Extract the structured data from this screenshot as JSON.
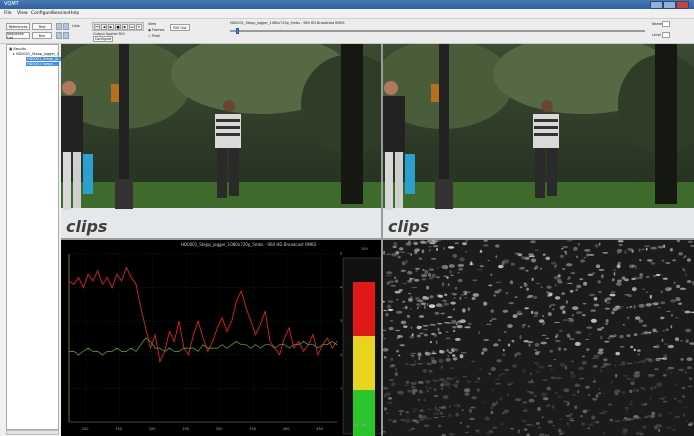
{
  "window": {
    "title": "VQMT"
  },
  "menu": [
    "File",
    "View",
    "Configure",
    "Session",
    "Help"
  ],
  "toolbar": {
    "btn_references": "References",
    "btn_sequence_list": "Sequence List",
    "btn_test": "Test",
    "btn_run": "Run",
    "btn_configure": "Configure",
    "label_output_spatial_roi": "Output Spatial ROI",
    "label_lists": "Lists",
    "label_frames": "Frames",
    "label_pixel": "Pixel",
    "label_view": "View",
    "btn_roi_out": "ROI Out",
    "filename": "HD0001_Stepp_jogger_1080x720p_5mbs - 960 HD Broadcast 0MKS",
    "label_name": "Name",
    "label_level": "Level"
  },
  "tree": {
    "items": [
      {
        "label": "Results"
      },
      {
        "label": "HD0001_Stepp_jogger_1"
      },
      {
        "label": "HD0001_Stepp_jo..."
      },
      {
        "label": "HD0001 Stepp_..."
      }
    ]
  },
  "video": {
    "watermark": "clips"
  },
  "chart_data": {
    "type": "line",
    "title": "HD0001_Stepp_jogger_1080x720p_5mbs - 960 HD Broadcast 0MKS",
    "x_ticks": [
      "100",
      "150",
      "200",
      "250",
      "300",
      "350",
      "400",
      "450"
    ],
    "y_ticks": [
      "1",
      "2",
      "3",
      "4",
      "5"
    ],
    "legend_scale_top": "100",
    "legend_scale_bottom": "0.5 - 80",
    "series": [
      {
        "color": "#e02020",
        "values": [
          4.2,
          4.1,
          4.3,
          4.0,
          4.4,
          4.2,
          4.5,
          4.1,
          4.3,
          4.0,
          4.4,
          4.2,
          4.6,
          4.3,
          4.1,
          3.4,
          2.8,
          2.2,
          2.6,
          1.8,
          2.1,
          2.7,
          2.4,
          3.0,
          2.2,
          2.0,
          2.6,
          3.0,
          2.5,
          2.1,
          2.4,
          2.8,
          3.1,
          2.7,
          3.0,
          3.6,
          3.9,
          3.4,
          3.0,
          2.6,
          2.9,
          3.3,
          2.4,
          2.2,
          2.0,
          2.5,
          2.8,
          2.2,
          2.4,
          2.1,
          2.3,
          2.6,
          2.0,
          2.3,
          2.5,
          2.2,
          2.4
        ]
      },
      {
        "color": "#5ab22a",
        "values": [
          2.1,
          2.1,
          2.0,
          2.1,
          2.2,
          2.1,
          2.1,
          2.0,
          2.1,
          2.1,
          2.2,
          2.1,
          2.1,
          2.2,
          2.1,
          2.3,
          2.5,
          2.4,
          2.2,
          2.2,
          2.1,
          2.2,
          2.1,
          2.1,
          2.2,
          2.2,
          2.2,
          2.1,
          2.3,
          2.2,
          2.2,
          2.2,
          2.3,
          2.2,
          2.3,
          2.4,
          2.3,
          2.3,
          2.2,
          2.3,
          2.2,
          2.3,
          2.3,
          2.2,
          2.3,
          2.3,
          2.2,
          2.3,
          2.3,
          2.4,
          2.3,
          2.3,
          2.2,
          2.3,
          2.3,
          2.4,
          2.3
        ]
      }
    ],
    "ylim": [
      0,
      5
    ],
    "quality_bar": [
      {
        "color": "#e01818"
      },
      {
        "color": "#e8d41f"
      },
      {
        "color": "#2ac52a"
      }
    ]
  }
}
